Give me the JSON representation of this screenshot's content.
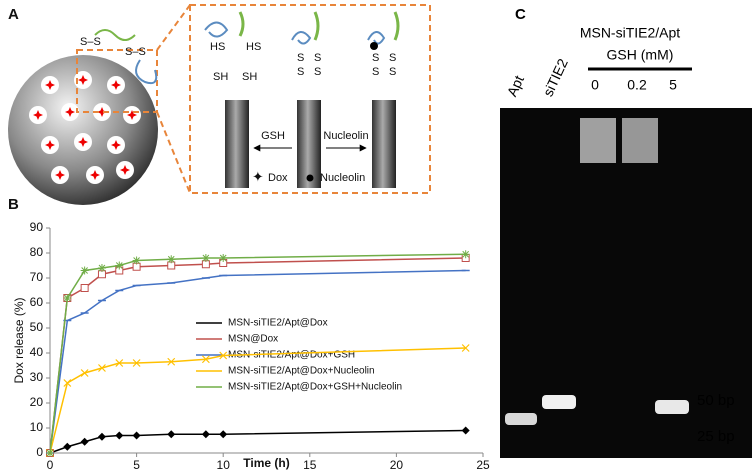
{
  "panel_a": {
    "label": "A",
    "ss_labels": [
      "S–S",
      "S–S"
    ],
    "hs_labels": [
      "HS",
      "HS"
    ],
    "sh_labels": [
      "SH",
      "SH"
    ],
    "middle_tube_s": [
      "S",
      "S",
      "S",
      "S"
    ],
    "right_tube_s": [
      "S",
      "S",
      "S",
      "S"
    ],
    "arrow_left": "GSH",
    "arrow_right": "Nucleolin",
    "legend_dox": "Dox",
    "legend_nucleolin": "Nucleolin"
  },
  "panel_b_label": "B",
  "chart_data": {
    "type": "line",
    "x_label": "Time (h)",
    "y_label": "Dox release (%)",
    "x": [
      0,
      1,
      2,
      3,
      4,
      5,
      7,
      9,
      10,
      24
    ],
    "series": [
      {
        "name": "MSN-siTIE2/Apt@Dox",
        "color": "#000000",
        "marker": "diamond",
        "values": [
          0,
          2.5,
          4.5,
          6.5,
          7,
          7,
          7.5,
          7.5,
          7.5,
          9
        ]
      },
      {
        "name": "MSN@Dox",
        "color": "#c0504d",
        "marker": "square",
        "values": [
          0,
          62,
          66,
          71.5,
          73,
          74.5,
          75,
          75.5,
          76,
          78
        ]
      },
      {
        "name": "MSN-siTIE2/Apt@Dox+GSH",
        "color": "#4472c4",
        "marker": "dash",
        "values": [
          0,
          53,
          56,
          61,
          65,
          67,
          68,
          70,
          71,
          73
        ]
      },
      {
        "name": "MSN-siTIE2/Apt@Dox+Nucleolin",
        "color": "#ffc000",
        "marker": "cross",
        "values": [
          0,
          28,
          32,
          34,
          36,
          36,
          36.5,
          37.5,
          39,
          42
        ]
      },
      {
        "name": "MSN-siTIE2/Apt@Dox+GSH+Nucleolin",
        "color": "#70ad47",
        "marker": "star",
        "values": [
          0,
          62,
          73,
          74,
          75,
          77,
          77.5,
          78,
          78,
          79.5
        ]
      }
    ],
    "xlim": [
      0,
      25
    ],
    "xticks": [
      0,
      5,
      10,
      15,
      20,
      25
    ],
    "ylim": [
      0,
      90
    ],
    "yticks": [
      0,
      10,
      20,
      30,
      40,
      50,
      60,
      70,
      80,
      90
    ]
  },
  "panel_c": {
    "label": "C",
    "title": "MSN-siTIE2/Apt",
    "subtitle": "GSH (mM)",
    "lanes": [
      "Apt",
      "siTIE2",
      "0",
      "0.2",
      "5"
    ],
    "markers": [
      "50 bp",
      "25 bp"
    ]
  }
}
